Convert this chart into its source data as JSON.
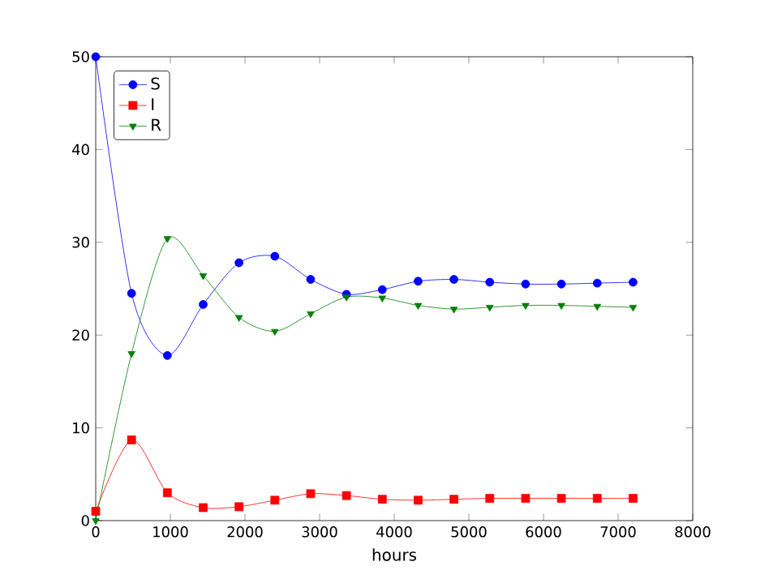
{
  "chart_data": {
    "type": "line",
    "xlabel": "hours",
    "x": [
      0,
      480,
      960,
      1440,
      1920,
      2400,
      2880,
      3360,
      3840,
      4320,
      4800,
      5280,
      5760,
      6240,
      6720,
      7200
    ],
    "series": [
      {
        "name": "S",
        "color": "#0000ff",
        "marker": "circle",
        "values": [
          50,
          24.5,
          17.8,
          23.3,
          27.8,
          28.5,
          26,
          24.4,
          24.9,
          25.8,
          26,
          25.7,
          25.5,
          25.5,
          25.6,
          25.7
        ]
      },
      {
        "name": "I",
        "color": "#ff0000",
        "marker": "square",
        "values": [
          1,
          8.7,
          3,
          1.4,
          1.5,
          2.2,
          2.9,
          2.7,
          2.3,
          2.2,
          2.3,
          2.4,
          2.4,
          2.4,
          2.4,
          2.4
        ]
      },
      {
        "name": "R",
        "color": "#008000",
        "marker": "triangle",
        "values": [
          0,
          18,
          30.4,
          26.4,
          21.9,
          20.4,
          22.3,
          24.1,
          24,
          23.2,
          22.8,
          23,
          23.2,
          23.2,
          23.1,
          23
        ]
      }
    ],
    "xlim": [
      0,
      8000
    ],
    "ylim": [
      0,
      50
    ],
    "xticks": [
      0,
      1000,
      2000,
      3000,
      4000,
      5000,
      6000,
      7000,
      8000
    ],
    "yticks": [
      0,
      10,
      20,
      30,
      40,
      50
    ],
    "legend": "top left",
    "grid": false
  }
}
